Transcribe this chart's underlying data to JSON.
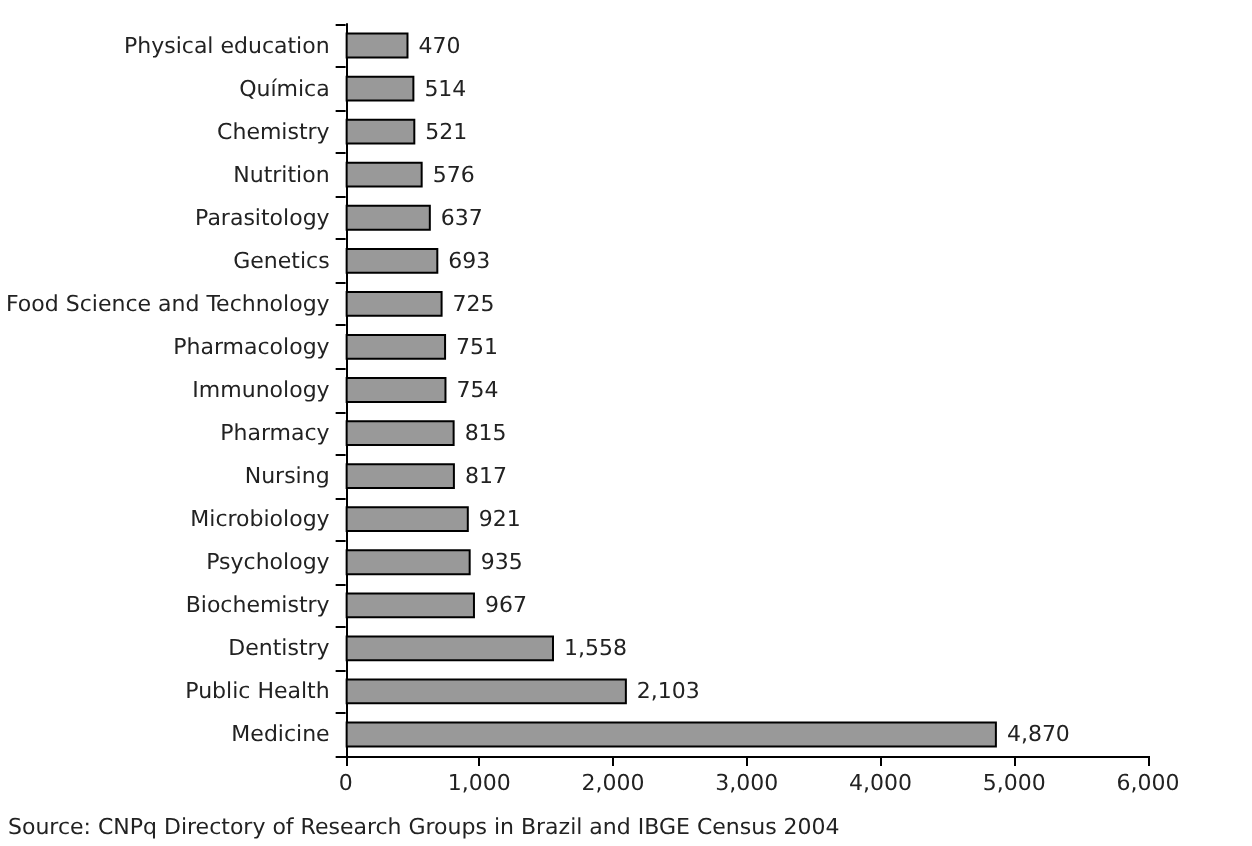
{
  "chart_data": {
    "type": "bar",
    "orientation": "horizontal",
    "categories": [
      "Physical education",
      "Química",
      "Chemistry",
      "Nutrition",
      "Parasitology",
      "Genetics",
      "Food Science and Technology",
      "Pharmacology",
      "Immunology",
      "Pharmacy",
      "Nursing",
      "Microbiology",
      "Psychology",
      "Biochemistry",
      "Dentistry",
      "Public Health",
      "Medicine"
    ],
    "values": [
      470,
      514,
      521,
      576,
      637,
      693,
      725,
      751,
      754,
      815,
      817,
      921,
      935,
      967,
      1558,
      2103,
      4870
    ],
    "value_labels": [
      "470",
      "514",
      "521",
      "576",
      "637",
      "693",
      "725",
      "751",
      "754",
      "815",
      "817",
      "921",
      "935",
      "967",
      "1,558",
      "2,103",
      "4,870"
    ],
    "color": "#999999",
    "xlim": [
      0,
      6000
    ],
    "xticks": [
      0,
      {
        "value": 1000,
        "label": "1,000"
      },
      {
        "value": 2000,
        "label": "2,000"
      },
      {
        "value": 3000,
        "label": "3,000"
      },
      {
        "value": 4000,
        "label": "4,000"
      },
      {
        "value": 5000,
        "label": "5,000"
      },
      {
        "value": 6000,
        "label": "6,000"
      }
    ],
    "grid": false,
    "annotations": [
      "Source: CNPq Directory of Research Groups in Brazil and IBGE Census 2004"
    ]
  }
}
